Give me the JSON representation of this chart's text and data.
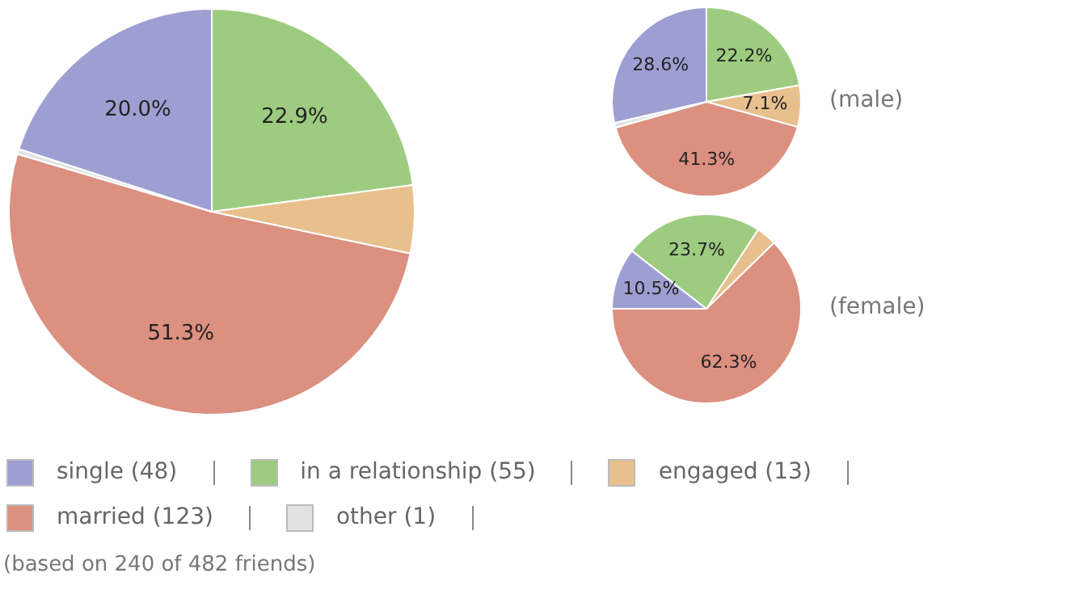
{
  "chart_data": {
    "type": "pie",
    "categories": [
      "single (48)",
      "in a relationship (55)",
      "engaged (13)",
      "married (123)",
      "other (1)"
    ],
    "colors": [
      "#9d9fd2",
      "#9dcc80",
      "#e8c08e",
      "#dc9080",
      "#e2e2e2"
    ],
    "legend": "bottom",
    "annotations": [
      "(based on 240 of 482 friends)"
    ],
    "series": [
      {
        "values": [
          20.0,
          22.9,
          5.4,
          51.3,
          0.4
        ],
        "value_labels": [
          "20.0%",
          "22.9%",
          null,
          "51.3%",
          null
        ]
      },
      {
        "name": "(male)",
        "values": [
          28.6,
          22.2,
          7.1,
          41.3,
          0.8
        ],
        "value_labels": [
          "28.6%",
          "22.2%",
          "7.1%",
          "41.3%",
          null
        ]
      },
      {
        "name": "(female)",
        "values": [
          10.5,
          23.7,
          3.5,
          62.3,
          0
        ],
        "value_labels": [
          "10.5%",
          "23.7%",
          null,
          "62.3%",
          null
        ]
      }
    ]
  }
}
